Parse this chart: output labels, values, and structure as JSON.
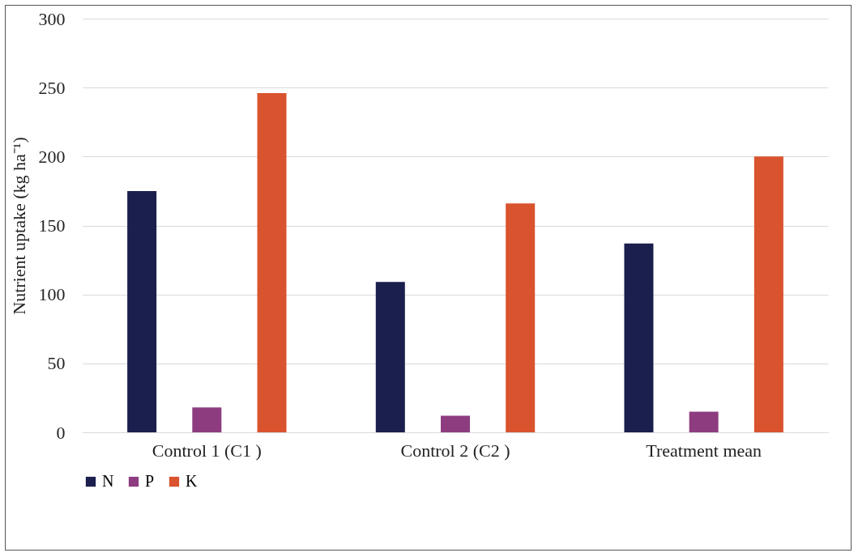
{
  "chart_data": {
    "type": "bar",
    "ylabel": "Nutrient uptake (kg ha⁻¹)",
    "categories": [
      "Control 1 (C1 )",
      "Control 2 (C2 )",
      "Treatment mean"
    ],
    "series": [
      {
        "name": "N",
        "color": "#1b1f4e",
        "values": [
          175,
          109,
          137
        ]
      },
      {
        "name": "P",
        "color": "#8e3c80",
        "values": [
          18,
          12,
          15
        ]
      },
      {
        "name": "K",
        "color": "#d9532e",
        "values": [
          246,
          166,
          200
        ]
      }
    ],
    "ylim": [
      0,
      300
    ],
    "yticks": [
      0,
      50,
      100,
      150,
      200,
      250,
      300
    ],
    "grid": "y",
    "legend": "bottom"
  }
}
